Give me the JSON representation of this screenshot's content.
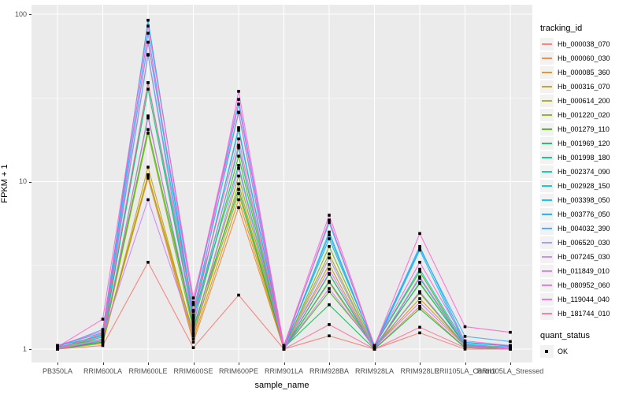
{
  "figure": {
    "panel_bg": "#EBEBEB",
    "grid_color": "#FFFFFF",
    "tick_text_color": "#4D4D4D",
    "point_color": "#000000"
  },
  "axes": {
    "x": {
      "title": "sample_name"
    },
    "y": {
      "title": "FPKM + 1",
      "ticks": [
        1,
        10,
        100
      ]
    }
  },
  "legend": {
    "tracking_title": "tracking_id",
    "quant_title": "quant_status",
    "quant_items": [
      {
        "label": "OK",
        "shape": "square",
        "color": "#000000"
      }
    ]
  },
  "chart_data": {
    "type": "line",
    "title": "",
    "xlabel": "sample_name",
    "ylabel": "FPKM + 1",
    "y_scale": "log10",
    "ylim": [
      1,
      100
    ],
    "grid": true,
    "legend_position": "right",
    "point_shape": "square",
    "point_color": "#000000",
    "categories": [
      "PB350LA",
      "RRIM600LA",
      "RRIM600LE",
      "RRIM600SE",
      "RRIM600PE",
      "RRIM901LA",
      "RRIM928BA",
      "RRIM928LA",
      "RRIM928LE",
      "RRII105LA_Control",
      "RRII105LA_Stressed"
    ],
    "series": [
      {
        "name": "Hb_000038_070",
        "color": "#F8766D",
        "values": [
          1.0,
          1.05,
          3.3,
          1.02,
          2.1,
          1.0,
          1.2,
          1.0,
          1.25,
          1.0,
          1.0
        ]
      },
      {
        "name": "Hb_000060_030",
        "color": "#EA8331",
        "values": [
          1.0,
          1.1,
          10.5,
          1.1,
          7.0,
          1.0,
          2.5,
          1.0,
          1.8,
          1.02,
          1.0
        ]
      },
      {
        "name": "Hb_000085_360",
        "color": "#D89000",
        "values": [
          1.02,
          1.1,
          11.0,
          1.15,
          7.8,
          1.0,
          2.8,
          1.02,
          2.0,
          1.05,
          1.0
        ]
      },
      {
        "name": "Hb_000316_070",
        "color": "#C09B00",
        "values": [
          1.0,
          1.08,
          12.2,
          1.2,
          9.7,
          1.0,
          3.2,
          1.0,
          2.2,
          1.03,
          1.0
        ]
      },
      {
        "name": "Hb_000614_200",
        "color": "#A3A500",
        "values": [
          1.02,
          1.12,
          10.8,
          1.25,
          8.5,
          1.02,
          3.7,
          1.0,
          2.5,
          1.05,
          1.02
        ]
      },
      {
        "name": "Hb_001220_020",
        "color": "#7CAE00",
        "values": [
          1.0,
          1.1,
          19.5,
          1.3,
          10.8,
          1.0,
          4.1,
          1.02,
          2.16,
          1.04,
          1.0
        ]
      },
      {
        "name": "Hb_001279_110",
        "color": "#39B600",
        "values": [
          1.03,
          1.15,
          20.5,
          1.4,
          14.2,
          1.0,
          2.2,
          1.05,
          2.9,
          1.05,
          1.02
        ]
      },
      {
        "name": "Hb_001969_120",
        "color": "#00BB4E",
        "values": [
          1.0,
          1.1,
          24.7,
          1.35,
          9.0,
          1.02,
          1.84,
          1.0,
          1.74,
          1.02,
          1.0
        ]
      },
      {
        "name": "Hb_001998_180",
        "color": "#00C073",
        "values": [
          1.02,
          1.18,
          35.7,
          1.5,
          15.9,
          1.0,
          2.54,
          1.03,
          2.46,
          1.06,
          1.03
        ]
      },
      {
        "name": "Hb_002374_090",
        "color": "#00C1A3",
        "values": [
          1.0,
          1.12,
          39.0,
          1.55,
          12.5,
          1.0,
          2.83,
          1.0,
          2.65,
          1.05,
          1.0
        ]
      },
      {
        "name": "Hb_002928_150",
        "color": "#00BFC4",
        "values": [
          1.05,
          1.2,
          57.5,
          1.6,
          20.3,
          1.03,
          4.56,
          1.05,
          3.0,
          1.08,
          1.05
        ]
      },
      {
        "name": "Hb_003398_050",
        "color": "#00BAE0",
        "values": [
          1.02,
          1.22,
          68.0,
          1.68,
          25.8,
          1.0,
          5.0,
          1.02,
          3.9,
          1.06,
          1.02
        ]
      },
      {
        "name": "Hb_003776_050",
        "color": "#00B0F6",
        "values": [
          1.05,
          1.25,
          92.0,
          1.84,
          29.0,
          1.05,
          5.7,
          1.05,
          4.1,
          1.1,
          1.04
        ]
      },
      {
        "name": "Hb_004032_390",
        "color": "#35A2FF",
        "values": [
          1.03,
          1.31,
          77.0,
          1.54,
          21.0,
          1.02,
          4.8,
          1.03,
          4.0,
          1.19,
          1.11
        ]
      },
      {
        "name": "Hb_006520_030",
        "color": "#9590FF",
        "values": [
          1.0,
          1.15,
          57.0,
          1.4,
          16.5,
          1.0,
          3.5,
          1.0,
          2.2,
          1.05,
          1.03
        ]
      },
      {
        "name": "Hb_007245_030",
        "color": "#C77CFF",
        "values": [
          1.02,
          1.2,
          7.8,
          1.23,
          12.0,
          1.0,
          2.3,
          1.02,
          1.9,
          1.04,
          1.0
        ]
      },
      {
        "name": "Hb_011849_010",
        "color": "#E76BF3",
        "values": [
          1.0,
          1.13,
          24.0,
          1.45,
          34.6,
          1.03,
          3.0,
          1.0,
          2.7,
          1.07,
          1.02
        ]
      },
      {
        "name": "Hb_080952_060",
        "color": "#FA62DB",
        "values": [
          1.05,
          1.28,
          68.0,
          1.9,
          31.0,
          1.05,
          6.3,
          1.05,
          3.3,
          1.12,
          1.05
        ]
      },
      {
        "name": "Hb_119044_040",
        "color": "#FF61CC",
        "values": [
          1.03,
          1.51,
          85.0,
          2.02,
          26.0,
          1.02,
          5.9,
          1.04,
          4.9,
          1.36,
          1.26
        ]
      },
      {
        "name": "Hb_181744_010",
        "color": "#FF6A98",
        "values": [
          1.0,
          1.24,
          39.0,
          1.7,
          18.0,
          1.0,
          1.4,
          1.0,
          1.35,
          1.02,
          1.0
        ]
      }
    ]
  }
}
